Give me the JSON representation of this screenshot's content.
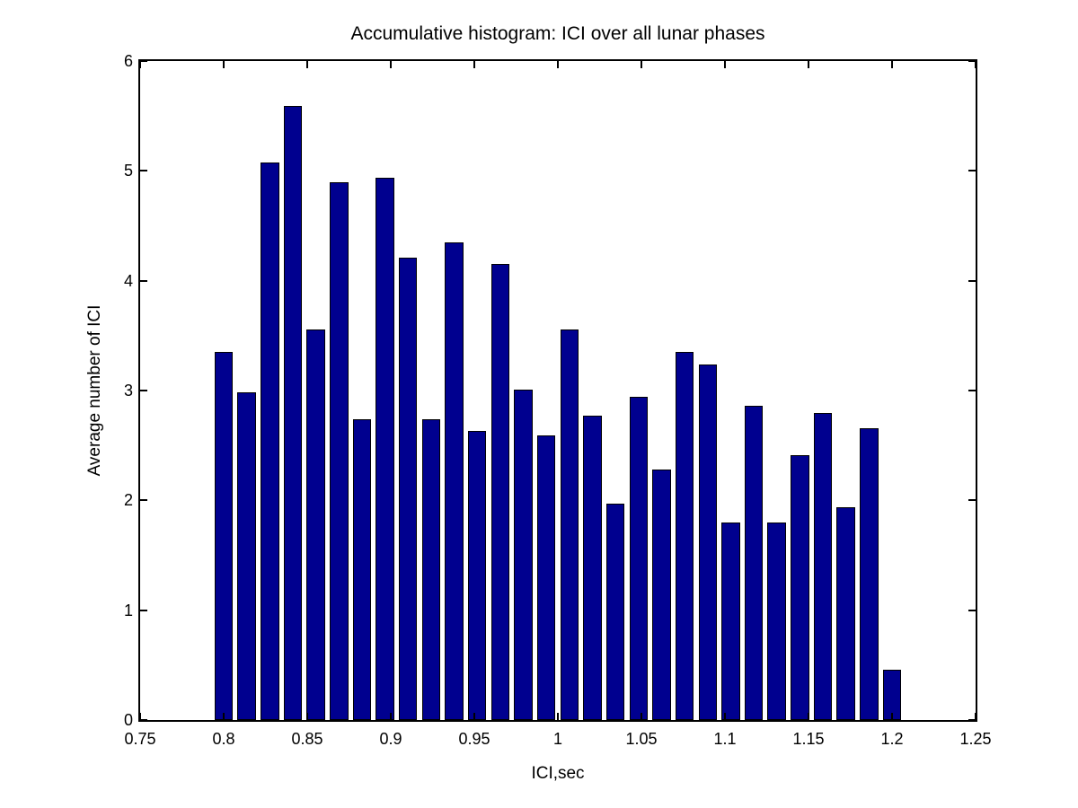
{
  "chart_data": {
    "type": "bar",
    "title": "Accumulative histogram: ICI over all lunar phases",
    "xlabel": "ICI,sec",
    "ylabel": "Average number of ICI",
    "xlim": [
      0.75,
      1.25
    ],
    "ylim": [
      0,
      6
    ],
    "x_tick_values": [
      0.75,
      0.8,
      0.85,
      0.9,
      0.95,
      1,
      1.05,
      1.1,
      1.15,
      1.2,
      1.25
    ],
    "x_tick_labels": [
      "0.75",
      "0.8",
      "0.85",
      "0.9",
      "0.95",
      "1",
      "1.05",
      "1.1",
      "1.15",
      "1.2",
      "1.25"
    ],
    "y_tick_values": [
      0,
      1,
      2,
      3,
      4,
      5,
      6
    ],
    "y_tick_labels": [
      "0",
      "1",
      "2",
      "3",
      "4",
      "5",
      "6"
    ],
    "grid": false,
    "legend": null,
    "bar_fill_color": "#00008F",
    "bar_edge_color": "#000000",
    "axis_color": "#000000",
    "background_color": "#FFFFFF",
    "bar_width_x_units": 0.011,
    "x": [
      0.8,
      0.8138,
      0.8276,
      0.8414,
      0.8552,
      0.869,
      0.8828,
      0.8966,
      0.9103,
      0.9241,
      0.9379,
      0.9517,
      0.9655,
      0.9793,
      0.9931,
      1.0069,
      1.0207,
      1.0345,
      1.0483,
      1.0621,
      1.0759,
      1.0897,
      1.1034,
      1.1172,
      1.131,
      1.1448,
      1.1586,
      1.1724,
      1.1862,
      1.2
    ],
    "values": [
      3.35,
      2.98,
      5.08,
      5.59,
      3.56,
      4.9,
      2.74,
      4.94,
      4.21,
      2.74,
      4.35,
      2.63,
      4.15,
      3.01,
      2.59,
      3.56,
      2.77,
      1.97,
      2.94,
      2.28,
      3.35,
      3.24,
      1.8,
      2.86,
      1.8,
      2.41,
      2.8,
      1.94,
      2.66,
      0.46
    ]
  }
}
